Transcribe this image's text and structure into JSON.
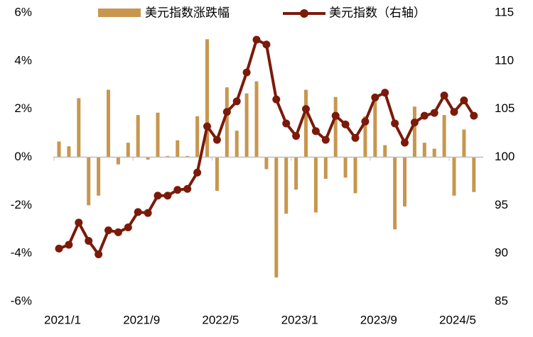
{
  "chart_data": {
    "type": "bar_line",
    "categories": [
      "2021/1",
      null,
      null,
      null,
      null,
      null,
      null,
      null,
      "2021/9",
      null,
      null,
      null,
      null,
      null,
      null,
      null,
      "2022/5",
      null,
      null,
      null,
      null,
      null,
      null,
      null,
      "2023/1",
      null,
      null,
      null,
      null,
      null,
      null,
      null,
      "2023/9",
      null,
      null,
      null,
      null,
      null,
      null,
      null,
      "2024/5",
      null,
      null
    ],
    "series": [
      {
        "name": "美元指数涨跌幅",
        "type": "bar",
        "color": "#c8964f",
        "values": [
          0.65,
          0.45,
          2.45,
          -2.0,
          -1.6,
          2.8,
          -0.3,
          0.6,
          1.75,
          -0.1,
          1.85,
          0.05,
          0.7,
          0.05,
          1.7,
          4.9,
          -1.4,
          2.9,
          1.1,
          2.65,
          3.15,
          -0.5,
          -5.0,
          -2.35,
          -1.35,
          2.8,
          -2.3,
          -0.9,
          2.5,
          -0.85,
          -1.5,
          1.7,
          2.4,
          0.5,
          -3.0,
          -2.05,
          2.1,
          0.6,
          0.35,
          1.75,
          -1.6,
          1.15,
          -1.45
        ]
      },
      {
        "name": "美元指数（右轴）",
        "type": "line",
        "axis": "y2",
        "color": "#7b1a0a",
        "values": [
          90.5,
          90.9,
          93.2,
          91.3,
          89.9,
          92.4,
          92.2,
          92.7,
          94.3,
          94.2,
          96.0,
          96.0,
          96.6,
          96.7,
          98.4,
          103.2,
          101.8,
          104.7,
          105.8,
          108.8,
          112.2,
          111.7,
          106.0,
          103.5,
          102.2,
          105.0,
          102.7,
          101.8,
          104.3,
          103.4,
          102.0,
          103.7,
          106.2,
          106.7,
          103.5,
          101.5,
          103.6,
          104.3,
          104.6,
          106.4,
          104.7,
          105.9,
          104.3
        ]
      }
    ],
    "ylim": [
      -6,
      6
    ],
    "yticks": [
      {
        "value": -6,
        "label": "-6%"
      },
      {
        "value": -4,
        "label": "-4%"
      },
      {
        "value": -2,
        "label": "-2%"
      },
      {
        "value": 0,
        "label": "0%"
      },
      {
        "value": 2,
        "label": "2%"
      },
      {
        "value": 4,
        "label": "4%"
      },
      {
        "value": 6,
        "label": "6%"
      }
    ],
    "y2lim": [
      85,
      115
    ],
    "y2ticks": [
      85,
      90,
      95,
      100,
      105,
      110,
      115
    ],
    "legend": "top"
  }
}
